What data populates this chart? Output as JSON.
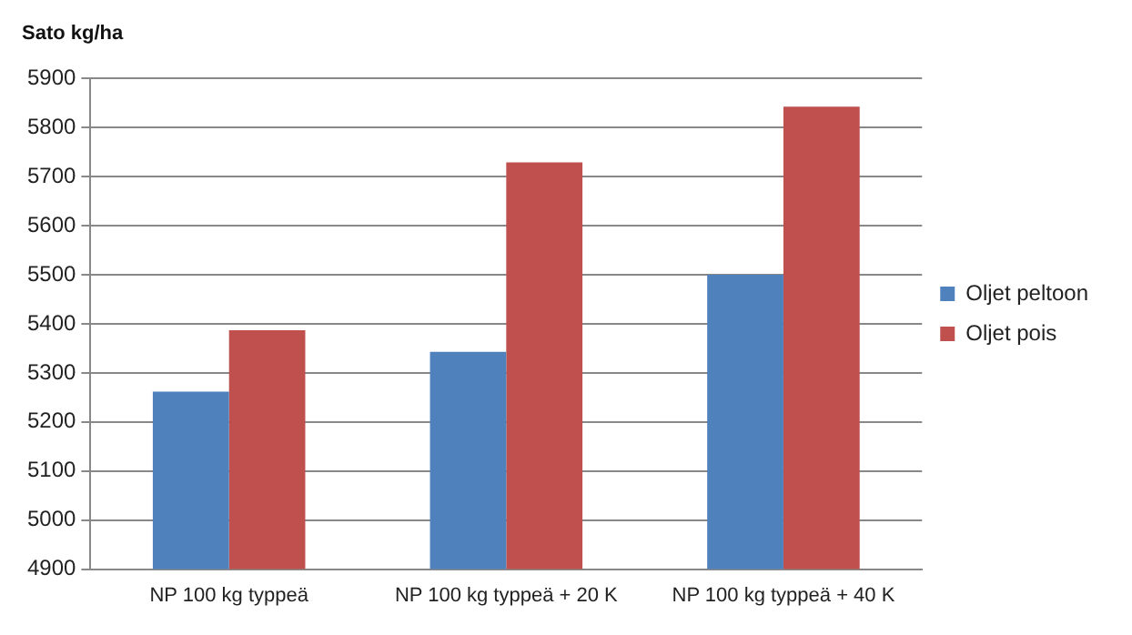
{
  "chart_data": {
    "type": "bar",
    "ylabel": "Sato kg/ha",
    "categories": [
      "NP 100 kg typpeä",
      "NP 100 kg typpeä + 20 K",
      "NP 100 kg typpeä + 40 K"
    ],
    "series": [
      {
        "name": "Oljet peltoon",
        "color": "#4f81bd",
        "values": [
          5262,
          5343,
          5500
        ]
      },
      {
        "name": "Oljet pois",
        "color": "#c0504d",
        "values": [
          5387,
          5729,
          5843
        ]
      }
    ],
    "ylim": [
      4900,
      5900
    ],
    "yticks": [
      4900,
      5000,
      5100,
      5200,
      5300,
      5400,
      5500,
      5600,
      5700,
      5800,
      5900
    ],
    "grid": "y",
    "legend": "right"
  }
}
